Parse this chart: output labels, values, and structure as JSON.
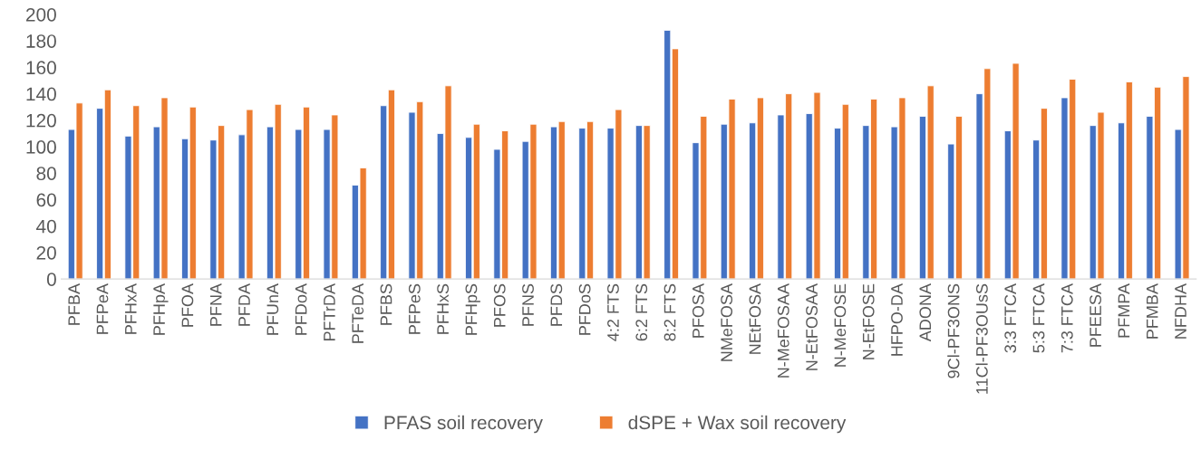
{
  "chart_data": {
    "type": "bar",
    "categories": [
      "PFBA",
      "PFPeA",
      "PFHxA",
      "PFHpA",
      "PFOA",
      "PFNA",
      "PFDA",
      "PFUnA",
      "PFDoA",
      "PFTrDA",
      "PFTeDA",
      "PFBS",
      "PFPeS",
      "PFHxS",
      "PFHpS",
      "PFOS",
      "PFNS",
      "PFDS",
      "PFDoS",
      "4:2 FTS",
      "6:2 FTS",
      "8:2 FTS",
      "PFOSA",
      "NMeFOSA",
      "NEtFOSA",
      "N-MeFOSAA",
      "N-EtFOSAA",
      "N-MeFOSE",
      "N-EtFOSE",
      "HFPO-DA",
      "ADONA",
      "9Cl-PF3ONS",
      "11Cl-PF3OUsS",
      "3:3 FTCA",
      "5:3 FTCA",
      "7:3 FTCA",
      "PFEESA",
      "PFMPA",
      "PFMBA",
      "NFDHA"
    ],
    "series": [
      {
        "name": "PFAS soil recovery",
        "color": "#4472c4",
        "values": [
          113,
          129,
          108,
          115,
          106,
          105,
          109,
          115,
          113,
          113,
          71,
          131,
          126,
          110,
          107,
          98,
          104,
          115,
          114,
          114,
          116,
          188,
          103,
          117,
          118,
          124,
          125,
          114,
          116,
          115,
          123,
          102,
          140,
          112,
          105,
          137,
          116,
          118,
          123,
          113
        ]
      },
      {
        "name": "dSPE + Wax soil recovery",
        "color": "#ed7d31",
        "values": [
          133,
          143,
          131,
          137,
          130,
          116,
          128,
          132,
          130,
          124,
          84,
          143,
          134,
          146,
          117,
          112,
          117,
          119,
          119,
          128,
          116,
          174,
          123,
          136,
          137,
          140,
          141,
          132,
          136,
          137,
          146,
          123,
          159,
          163,
          129,
          151,
          126,
          149,
          145,
          153
        ]
      }
    ],
    "ylim": [
      0,
      200
    ],
    "yticks": [
      0,
      20,
      40,
      60,
      80,
      100,
      120,
      140,
      160,
      180,
      200
    ],
    "legend": "bottom",
    "grid": false
  }
}
